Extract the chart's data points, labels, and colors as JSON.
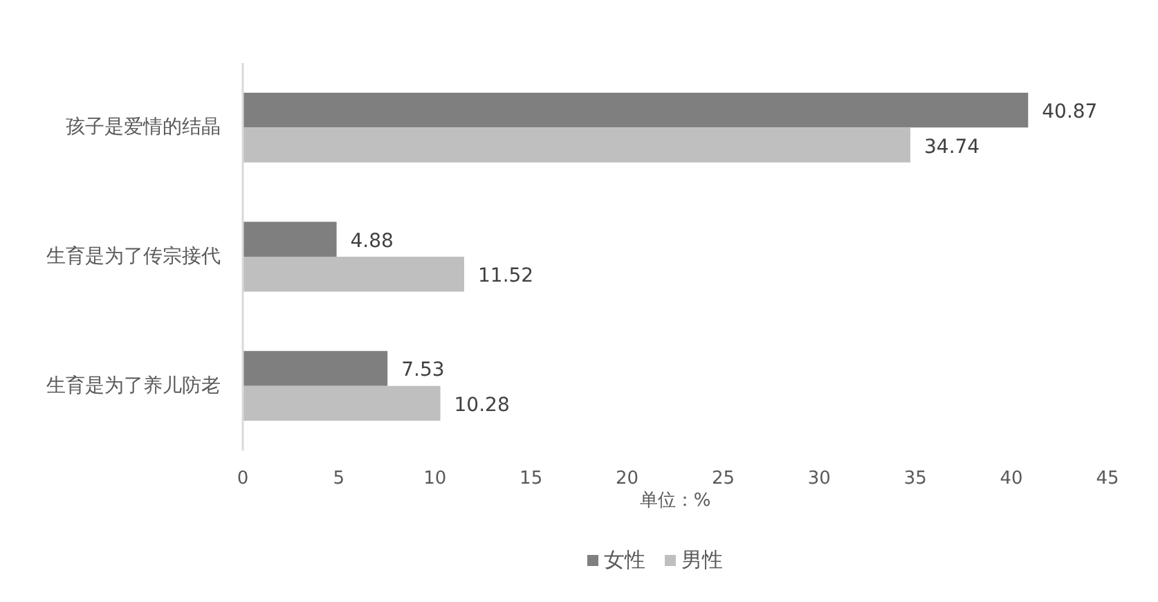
{
  "chart_data": {
    "type": "bar",
    "orientation": "horizontal",
    "categories": [
      "孩子是爱情的结晶",
      "生育是为了传宗接代",
      "生育是为了养儿防老"
    ],
    "series": [
      {
        "name": "女性",
        "color": "#7f7f7f",
        "values": [
          40.87,
          4.88,
          7.53
        ]
      },
      {
        "name": "男性",
        "color": "#bfbfbf",
        "values": [
          34.74,
          11.52,
          10.28
        ]
      }
    ],
    "xlabel": "单位：%",
    "xlim": [
      0,
      45
    ],
    "xticks": [
      0,
      5,
      10,
      15,
      20,
      25,
      30,
      35,
      40,
      45
    ],
    "data_labels": true,
    "legend": "bottom"
  }
}
